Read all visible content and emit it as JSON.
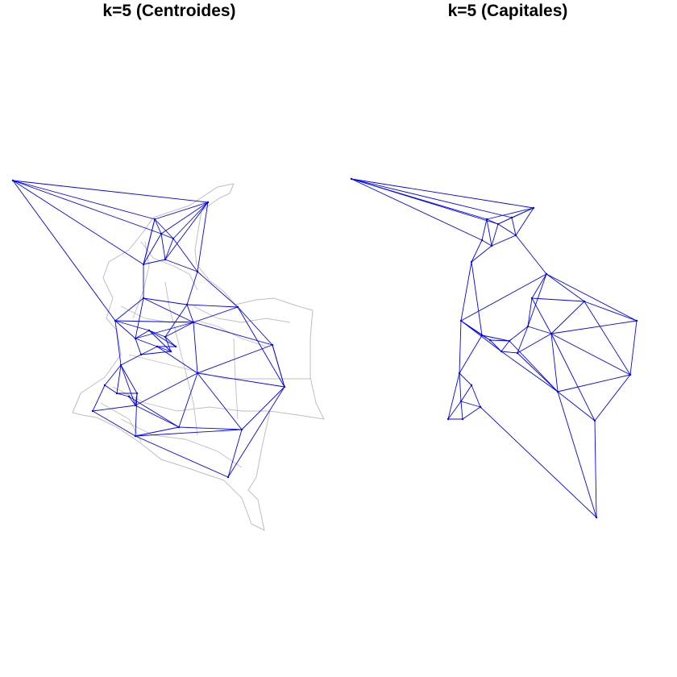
{
  "panels": [
    {
      "id": "centroides",
      "title": "k=5 (Centroides)"
    },
    {
      "id": "capitales",
      "title": "k=5 (Capitales)"
    }
  ],
  "colors": {
    "background": "#ffffff",
    "boundary": "#bebebe",
    "edges": "#0000ff",
    "title": "#000000"
  }
}
